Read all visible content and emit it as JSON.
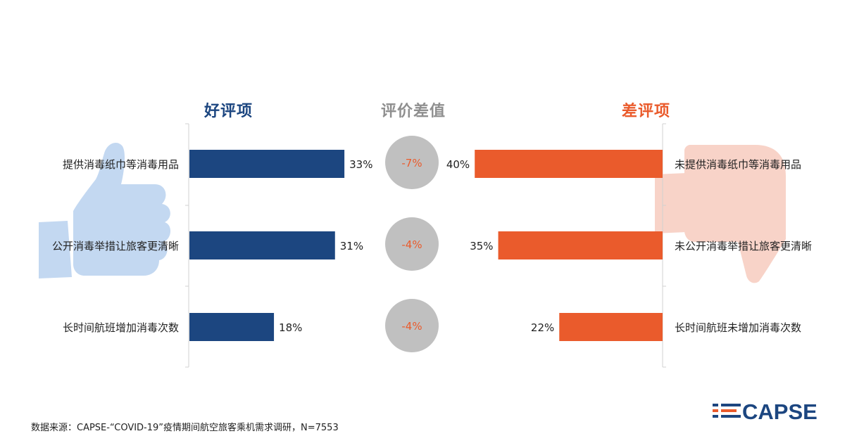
{
  "headers": {
    "good": "好评项",
    "diff": "评价差值",
    "bad": "差评项"
  },
  "chart_data": {
    "type": "bar",
    "good": {
      "categories": [
        "提供消毒纸巾等消毒用品",
        "公开消毒举措让旅客更清晰",
        "长时间航班增加消毒次数"
      ],
      "values": [
        33,
        31,
        18
      ],
      "labels": [
        "33%",
        "31%",
        "18%"
      ],
      "color": "#1c4680"
    },
    "diff": {
      "values": [
        -7,
        -4,
        -4
      ],
      "labels": [
        "-7%",
        "-4%",
        "-4%"
      ],
      "circle_color": "#c0c0c0",
      "text_color": "#ea5b2c"
    },
    "bad": {
      "categories": [
        "未提供消毒纸巾等消毒用品",
        "未公开消毒举措让旅客更清晰",
        "长时间航班未增加消毒次数"
      ],
      "values": [
        40,
        35,
        22
      ],
      "labels": [
        "40%",
        "35%",
        "22%"
      ],
      "color": "#ea5b2c"
    }
  },
  "footer": {
    "source": "数据来源：CAPSE-“COVID-19”疫情期间航空旅客乘机需求调研，N=7553",
    "logo_text": "CAPSE"
  },
  "colors": {
    "good_blue": "#1c4680",
    "bad_orange": "#ea5b2c",
    "diff_gray": "#8f8f8f",
    "thumb_up_light": "#c3d8f1",
    "thumb_down_light": "#f8d3c8"
  },
  "icons": [
    "thumbs-up-icon",
    "thumbs-down-icon",
    "capse-logo-icon"
  ]
}
